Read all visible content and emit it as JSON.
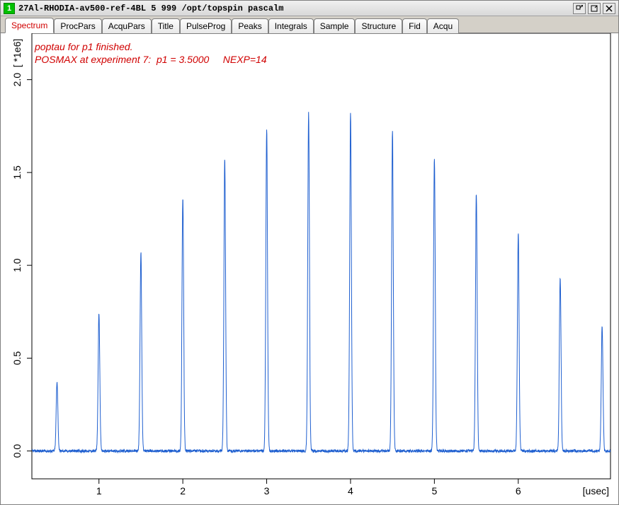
{
  "titlebar": {
    "badge": "1",
    "title": "27Al-RHODIA-av500-ref-4BL  5  999  /opt/topspin  pascalm"
  },
  "tabs": [
    {
      "label": "Spectrum",
      "active": true
    },
    {
      "label": "ProcPars",
      "active": false
    },
    {
      "label": "AcquPars",
      "active": false
    },
    {
      "label": "Title",
      "active": false
    },
    {
      "label": "PulseProg",
      "active": false
    },
    {
      "label": "Peaks",
      "active": false
    },
    {
      "label": "Integrals",
      "active": false
    },
    {
      "label": "Sample",
      "active": false
    },
    {
      "label": "Structure",
      "active": false
    },
    {
      "label": "Fid",
      "active": false
    },
    {
      "label": "Acqu",
      "active": false
    }
  ],
  "overlay": {
    "line1": "poptau for p1 finished.",
    "line2": "POSMAX at experiment 7:  p1 = 3.5000     NEXP=14"
  },
  "chart": {
    "type": "line",
    "x_axis": {
      "min": 0.2,
      "max": 7.1,
      "ticks": [
        1,
        2,
        3,
        4,
        5,
        6
      ],
      "label": "[usec]",
      "label_fontsize": 14
    },
    "y_axis": {
      "min": -0.15,
      "max": 2.25,
      "ticks": [
        0.0,
        0.5,
        1.0,
        1.5,
        2.0
      ],
      "tick_labels": [
        "0.0",
        "0.5",
        "1.0",
        "1.5",
        "2.0"
      ],
      "label": "[ *1e6]",
      "label_fontsize": 14
    },
    "line_color": "#2060d0",
    "line_width": 1,
    "axis_color": "#000000",
    "tick_color": "#000000",
    "background_color": "#ffffff",
    "tick_fontsize": 14,
    "peaks": [
      {
        "x": 0.5,
        "h": 0.37
      },
      {
        "x": 1.0,
        "h": 0.74
      },
      {
        "x": 1.5,
        "h": 1.07
      },
      {
        "x": 2.0,
        "h": 1.36
      },
      {
        "x": 2.5,
        "h": 1.58
      },
      {
        "x": 3.0,
        "h": 1.74
      },
      {
        "x": 3.5,
        "h": 1.82
      },
      {
        "x": 4.0,
        "h": 1.82
      },
      {
        "x": 4.5,
        "h": 1.73
      },
      {
        "x": 5.0,
        "h": 1.58
      },
      {
        "x": 5.5,
        "h": 1.39
      },
      {
        "x": 6.0,
        "h": 1.17
      },
      {
        "x": 6.5,
        "h": 0.93
      },
      {
        "x": 7.0,
        "h": 0.68
      }
    ],
    "peak_width": 0.06,
    "baseline_noise": 0.015
  }
}
